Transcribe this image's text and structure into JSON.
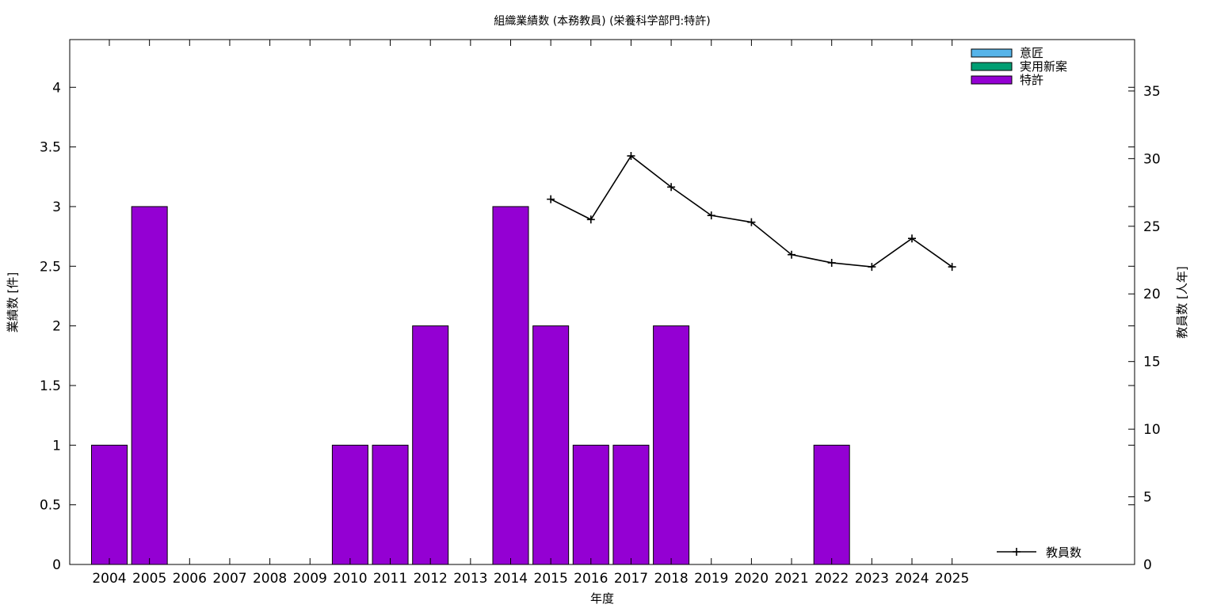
{
  "chart_data": {
    "type": "bar",
    "title": "組織業績数 (本務教員) (栄養科学部門:特許)",
    "xlabel": "年度",
    "ylabel": "業績数 [件]",
    "y2label": "教員数 [人年]",
    "categories": [
      "2004",
      "2005",
      "2006",
      "2007",
      "2008",
      "2009",
      "2010",
      "2011",
      "2012",
      "2013",
      "2014",
      "2015",
      "2016",
      "2017",
      "2018",
      "2019",
      "2020",
      "2021",
      "2022",
      "2023",
      "2024",
      "2025"
    ],
    "ylim": [
      0,
      4.4
    ],
    "y_ticks": [
      0,
      0.5,
      1,
      1.5,
      2,
      2.5,
      3,
      3.5,
      4
    ],
    "y_tick_labels": [
      "0",
      "0.5",
      "1",
      "1.5",
      "2",
      "2.5",
      "3",
      "3.5",
      "4"
    ],
    "y2lim": [
      0,
      38.8
    ],
    "y2_ticks": [
      0,
      5,
      10,
      15,
      20,
      25,
      30,
      35
    ],
    "y2_tick_labels": [
      "0",
      "5",
      "10",
      "15",
      "20",
      "25",
      "30",
      "35"
    ],
    "grid": false,
    "legend_position": "top-right",
    "series": [
      {
        "name": "意匠",
        "color": "#56b4e9",
        "values": [
          0,
          0,
          0,
          0,
          0,
          0,
          0,
          0,
          0,
          0,
          0,
          0,
          0,
          0,
          0,
          0,
          0,
          0,
          0,
          0,
          0,
          0
        ]
      },
      {
        "name": "実用新案",
        "color": "#009e73",
        "values": [
          0,
          0,
          0,
          0,
          0,
          0,
          0,
          0,
          0,
          0,
          0,
          0,
          0,
          0,
          0,
          0,
          0,
          0,
          0,
          0,
          0,
          0
        ]
      },
      {
        "name": "特許",
        "color": "#9400d3",
        "values": [
          1,
          3,
          0,
          0,
          0,
          0,
          1,
          1,
          2,
          0,
          3,
          2,
          1,
          1,
          2,
          0,
          0,
          0,
          1,
          0,
          0,
          0
        ]
      }
    ],
    "line_series": {
      "name": "教員数",
      "color": "#000000",
      "axis": "y2",
      "x": [
        "2015",
        "2016",
        "2017",
        "2018",
        "2019",
        "2020",
        "2021",
        "2022",
        "2023",
        "2024",
        "2025"
      ],
      "values": [
        27.0,
        25.5,
        30.2,
        27.9,
        25.8,
        25.3,
        22.9,
        22.3,
        22.0,
        24.1,
        22.0
      ]
    }
  }
}
